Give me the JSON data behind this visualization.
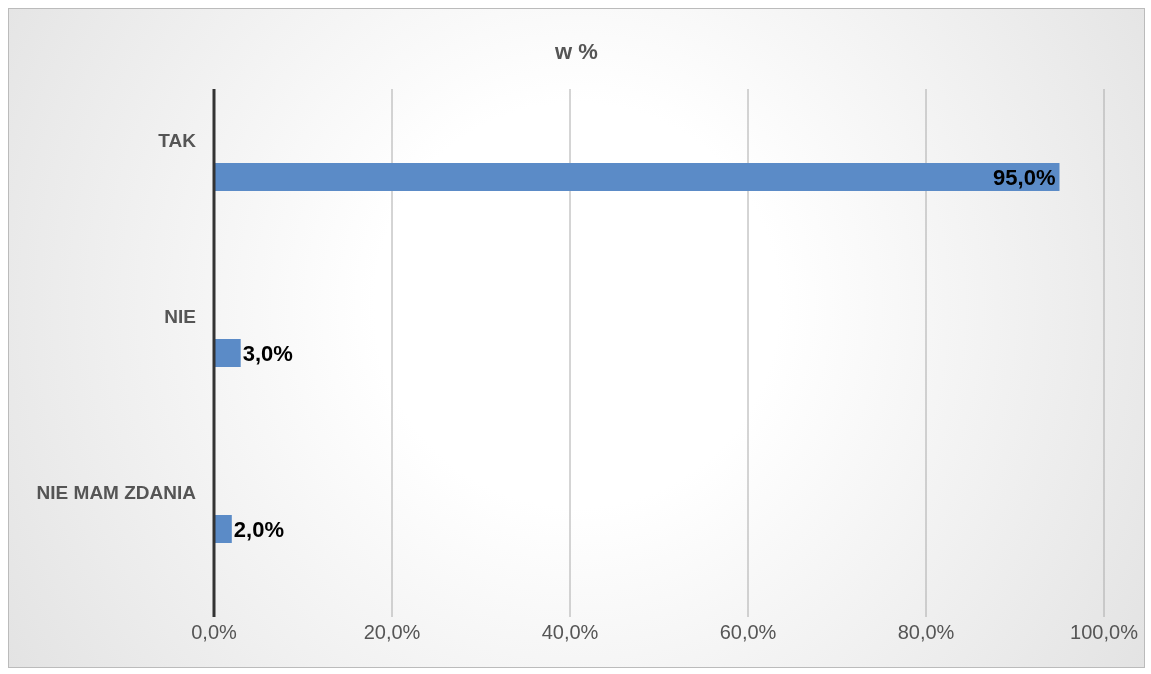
{
  "chart_data": {
    "type": "bar",
    "orientation": "horizontal",
    "title": "w %",
    "categories": [
      "TAK",
      "NIE",
      "NIE MAM ZDANIA"
    ],
    "values": [
      95,
      3,
      2
    ],
    "value_labels": [
      "95,0%",
      "3,0%",
      "2,0%"
    ],
    "color": "#5b8bc7",
    "xlim": [
      0,
      100
    ],
    "xticks": [
      {
        "value": 0,
        "label": "0,0%"
      },
      {
        "value": 20,
        "label": "20,0%"
      },
      {
        "value": 40,
        "label": "40,0%"
      },
      {
        "value": 60,
        "label": "60,0%"
      },
      {
        "value": 80,
        "label": "80,0%"
      },
      {
        "value": 100,
        "label": "100,0%"
      }
    ],
    "grid": "x"
  }
}
